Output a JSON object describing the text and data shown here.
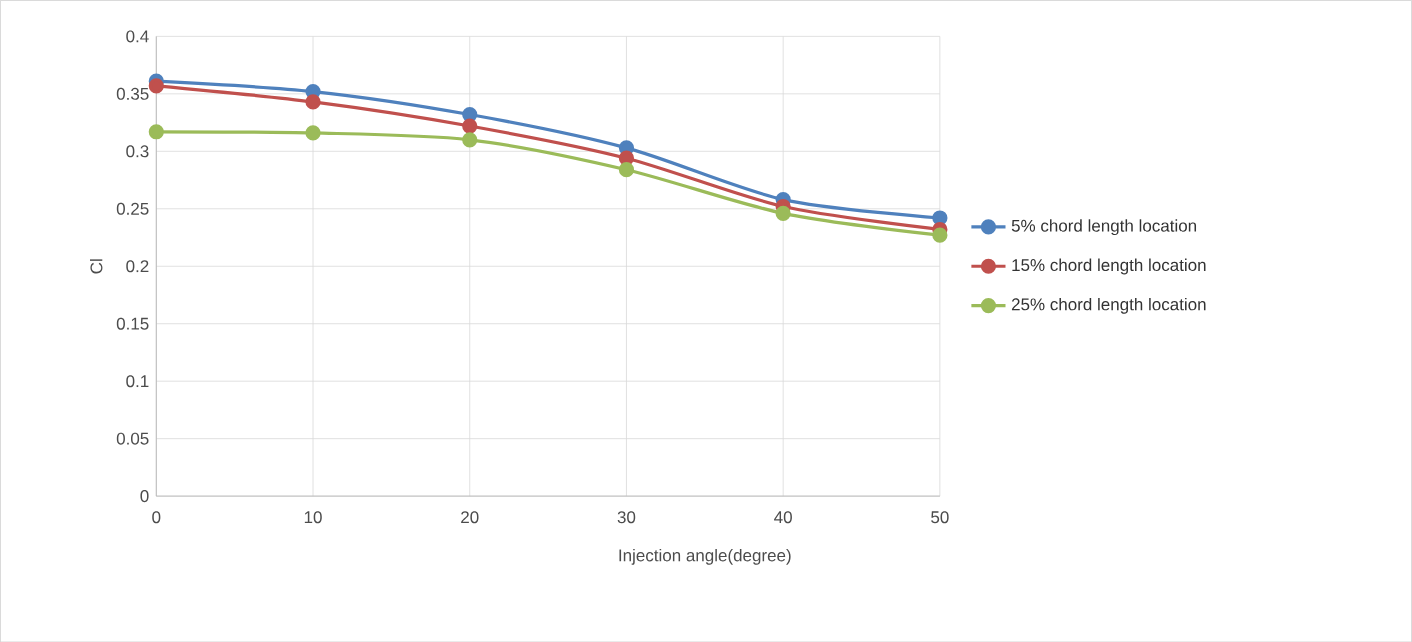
{
  "chart_data": {
    "type": "line",
    "xlabel": "Injection angle(degree)",
    "ylabel": "Cl",
    "x": [
      0,
      10,
      20,
      30,
      40,
      50
    ],
    "series": [
      {
        "name": "5% chord length location",
        "color": "#4f81bd",
        "values": [
          0.361,
          0.352,
          0.332,
          0.303,
          0.258,
          0.242
        ]
      },
      {
        "name": "15% chord length location",
        "color": "#c0504d",
        "values": [
          0.357,
          0.343,
          0.322,
          0.294,
          0.252,
          0.232
        ]
      },
      {
        "name": "25% chord length location",
        "color": "#9bbb59",
        "values": [
          0.317,
          0.316,
          0.31,
          0.284,
          0.246,
          0.227
        ]
      }
    ],
    "xlim": [
      0,
      50
    ],
    "xticks": [
      0,
      10,
      20,
      30,
      40,
      50
    ],
    "ylim": [
      0,
      0.4
    ],
    "yticks": [
      0,
      0.05,
      0.1,
      0.15,
      0.2,
      0.25,
      0.3,
      0.35,
      0.4
    ],
    "grid": true,
    "legend": "right",
    "marker": "circle"
  }
}
